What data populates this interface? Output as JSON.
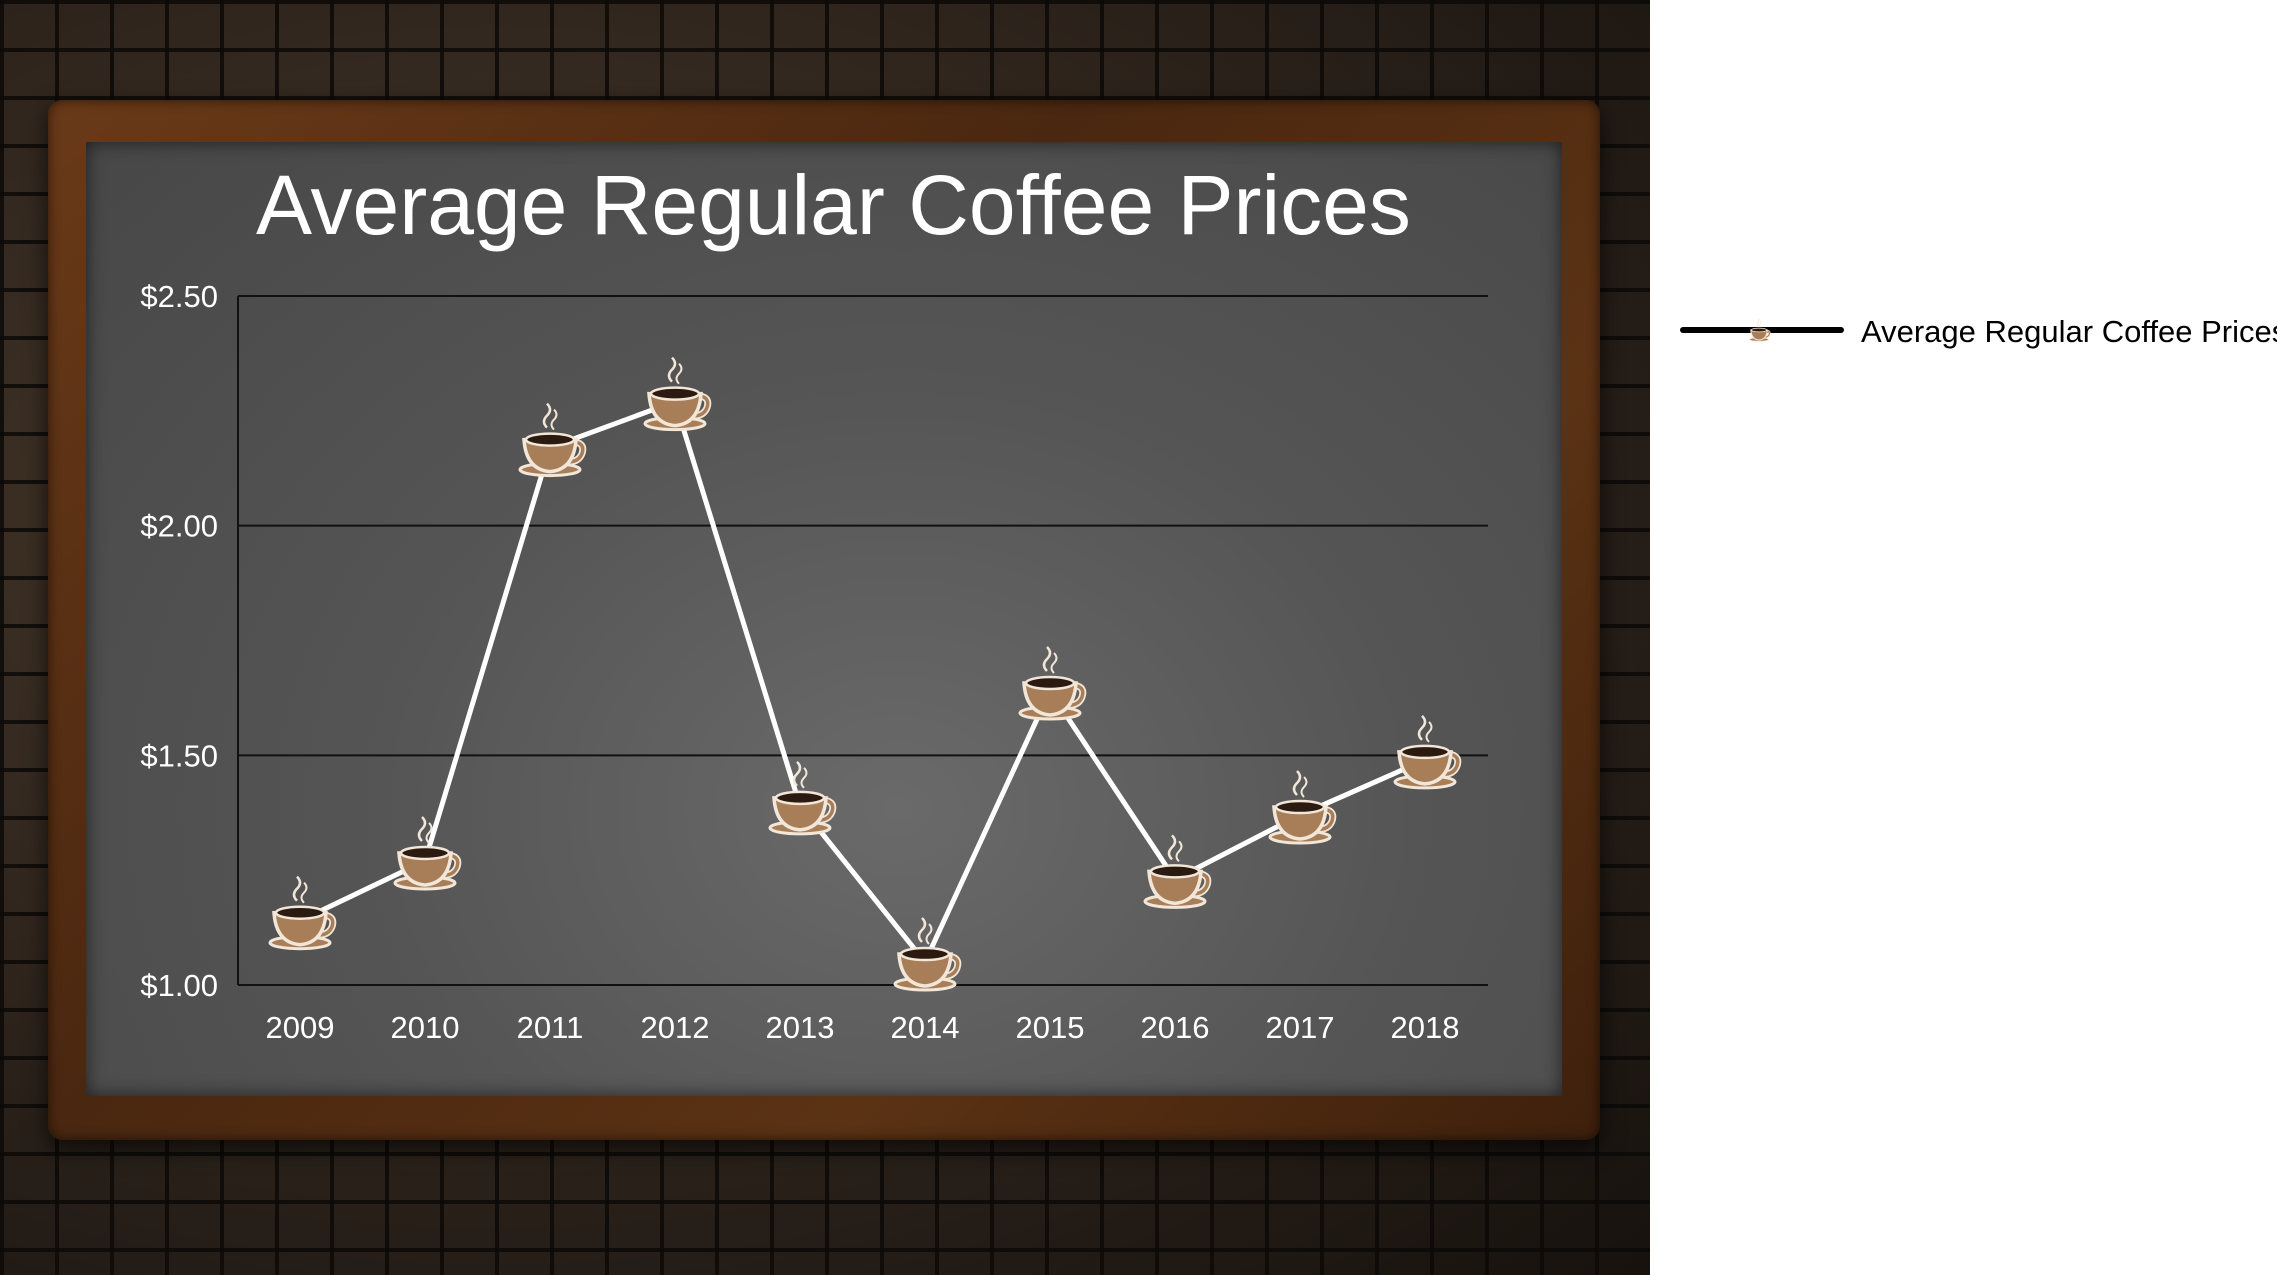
{
  "chart_data": {
    "type": "line",
    "title": "Average Regular Coffee Prices",
    "xlabel": "",
    "ylabel": "",
    "categories": [
      "2009",
      "2010",
      "2011",
      "2012",
      "2013",
      "2014",
      "2015",
      "2016",
      "2017",
      "2018"
    ],
    "series": [
      {
        "name": "Average Regular Coffee Prices",
        "values": [
          1.14,
          1.27,
          2.17,
          2.27,
          1.39,
          1.05,
          1.64,
          1.23,
          1.37,
          1.49
        ]
      }
    ],
    "ylim": [
      1.0,
      2.5
    ],
    "yticks": [
      "$1.00",
      "$1.50",
      "$2.00",
      "$2.50"
    ],
    "ytick_values": [
      1.0,
      1.5,
      2.0,
      2.5
    ],
    "grid": true,
    "legend_position": "right",
    "marker": "coffee-cup-icon"
  },
  "colors": {
    "board": "#555555",
    "line": "#ffffff",
    "cup": "#a87e59",
    "cup_rim": "#f2e6d8",
    "coffee": "#2b1a10",
    "frame": "#5b3214",
    "legend_line": "#000000"
  }
}
